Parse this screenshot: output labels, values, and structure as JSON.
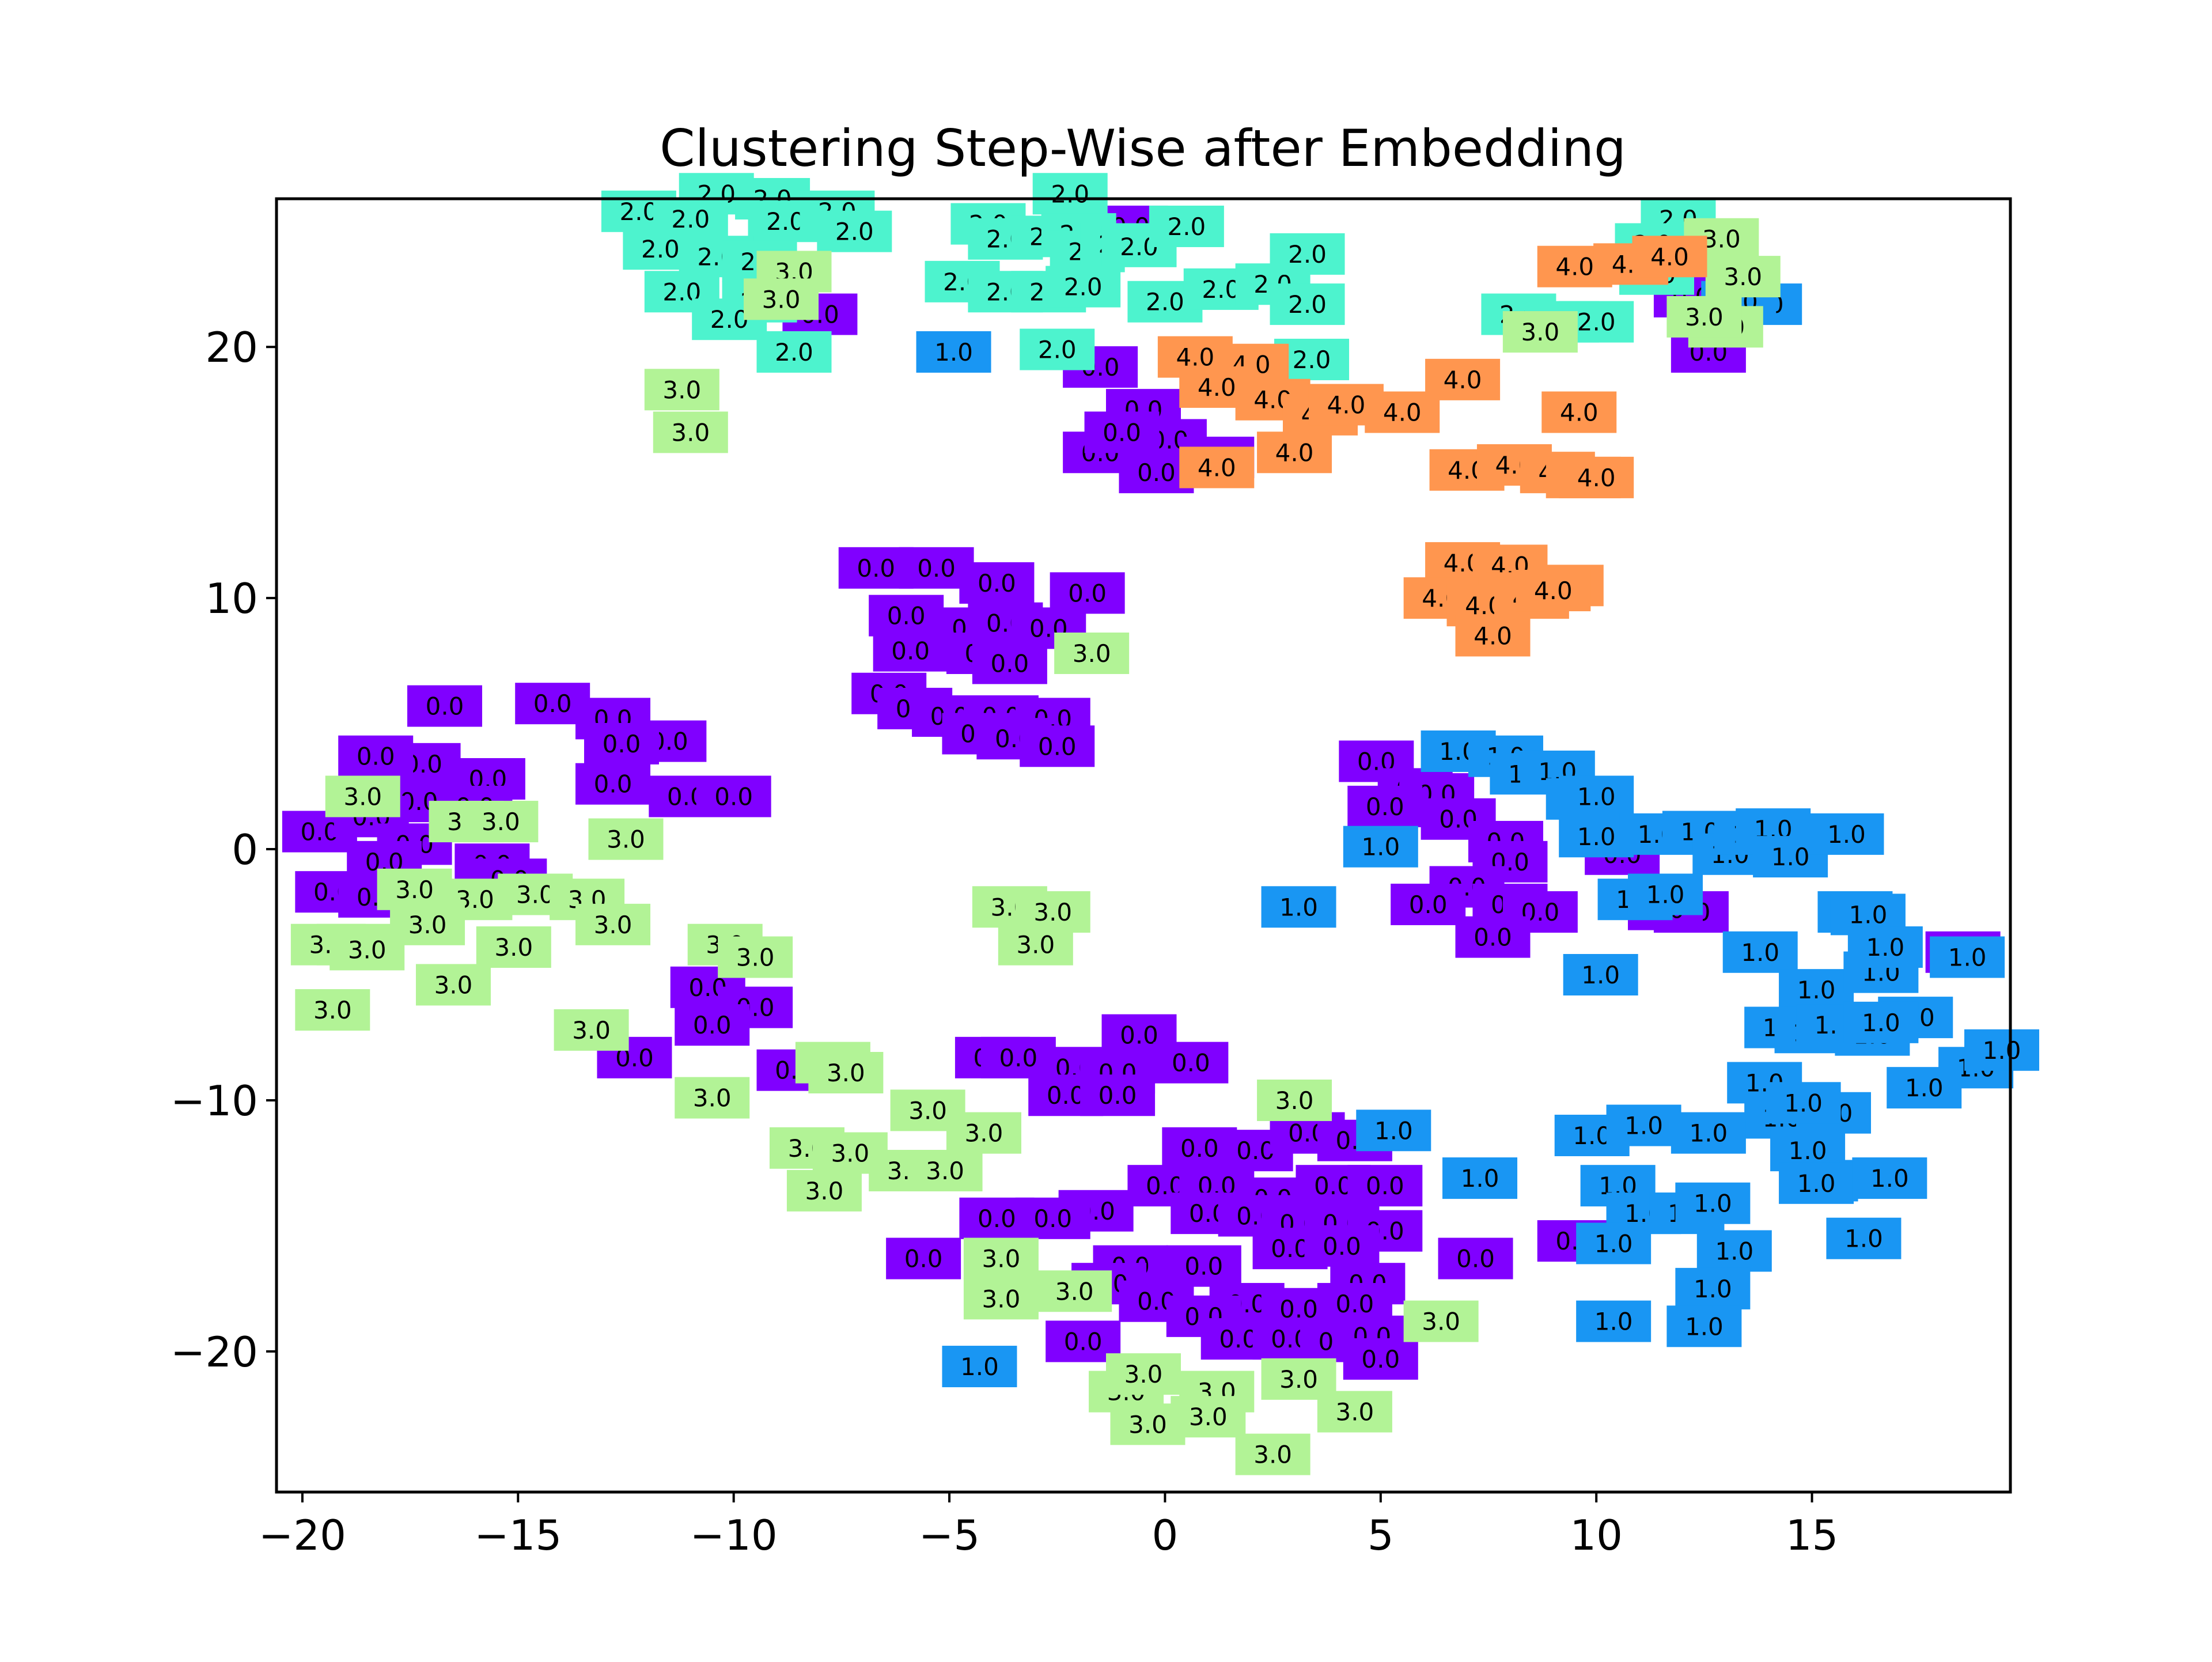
{
  "chart_data": {
    "type": "scatter",
    "title": "Clustering Step-Wise after Embedding",
    "xlabel": "",
    "ylabel": "",
    "xlim": [
      -20.6,
      19.6
    ],
    "ylim": [
      -25.6,
      25.9
    ],
    "xticks": [
      -20,
      -15,
      -10,
      -5,
      0,
      5,
      10,
      15
    ],
    "yticks": [
      -20,
      -10,
      0,
      10,
      20
    ],
    "xtick_labels": [
      "−20",
      "−15",
      "−10",
      "−5",
      "0",
      "5",
      "10",
      "15"
    ],
    "ytick_labels": [
      "−20",
      "−10",
      "0",
      "10",
      "20"
    ],
    "grid": false,
    "legend": "none",
    "marker": "labelled box",
    "colors": {
      "0.0": "#8000ff",
      "1.0": "#1996f3",
      "2.0": "#4df3ce",
      "3.0": "#b2f396",
      "4.0": "#ff964f"
    },
    "series": [
      {
        "label": "0.0",
        "points": [
          [
            -0.8,
            24.8
          ],
          [
            -8.0,
            21.3
          ],
          [
            -1.5,
            19.2
          ],
          [
            -0.5,
            17.5
          ],
          [
            0.1,
            16.3
          ],
          [
            -1.5,
            15.8
          ],
          [
            -0.2,
            15.0
          ],
          [
            1.2,
            15.6
          ],
          [
            -1.0,
            16.6
          ],
          [
            12.6,
            19.8
          ],
          [
            12.2,
            22.0
          ],
          [
            -6.7,
            11.2
          ],
          [
            -5.3,
            11.2
          ],
          [
            -3.9,
            10.6
          ],
          [
            -1.8,
            10.2
          ],
          [
            -6.0,
            9.3
          ],
          [
            -4.5,
            8.8
          ],
          [
            -3.7,
            9.0
          ],
          [
            -2.7,
            8.8
          ],
          [
            -5.9,
            7.9
          ],
          [
            -4.2,
            7.8
          ],
          [
            -3.6,
            7.4
          ],
          [
            -6.4,
            6.2
          ],
          [
            -5.8,
            5.6
          ],
          [
            -5.0,
            5.3
          ],
          [
            -3.8,
            5.3
          ],
          [
            -2.6,
            5.2
          ],
          [
            -4.3,
            4.6
          ],
          [
            -3.5,
            4.4
          ],
          [
            -2.5,
            4.1
          ],
          [
            -16.7,
            5.7
          ],
          [
            -14.2,
            5.8
          ],
          [
            -12.8,
            5.2
          ],
          [
            -11.5,
            4.3
          ],
          [
            -12.6,
            4.2
          ],
          [
            -17.2,
            3.4
          ],
          [
            -18.3,
            3.7
          ],
          [
            -15.7,
            2.8
          ],
          [
            -12.8,
            2.6
          ],
          [
            -11.1,
            2.1
          ],
          [
            -10.0,
            2.1
          ],
          [
            -17.3,
            1.9
          ],
          [
            -16.0,
            1.7
          ],
          [
            -19.6,
            0.7
          ],
          [
            -18.4,
            1.3
          ],
          [
            -17.4,
            0.2
          ],
          [
            -18.1,
            -0.5
          ],
          [
            -15.6,
            -0.6
          ],
          [
            -15.2,
            -1.2
          ],
          [
            -19.3,
            -1.7
          ],
          [
            -18.3,
            -1.9
          ],
          [
            -10.6,
            -5.5
          ],
          [
            -9.5,
            -6.3
          ],
          [
            -10.5,
            -7.0
          ],
          [
            -12.3,
            -8.3
          ],
          [
            -8.6,
            -8.8
          ],
          [
            -4.0,
            -8.3
          ],
          [
            -3.4,
            -8.3
          ],
          [
            -2.1,
            -8.7
          ],
          [
            -1.1,
            -8.9
          ],
          [
            -0.6,
            -7.4
          ],
          [
            0.6,
            -8.5
          ],
          [
            -2.3,
            -9.8
          ],
          [
            -1.1,
            -9.8
          ],
          [
            0.8,
            -11.9
          ],
          [
            2.1,
            -12.0
          ],
          [
            3.3,
            -11.3
          ],
          [
            4.4,
            -11.6
          ],
          [
            0.0,
            -13.4
          ],
          [
            1.2,
            -13.4
          ],
          [
            2.5,
            -13.9
          ],
          [
            3.9,
            -13.4
          ],
          [
            5.1,
            -13.4
          ],
          [
            -3.9,
            -14.7
          ],
          [
            -1.6,
            -14.4
          ],
          [
            -2.6,
            -14.7
          ],
          [
            1.0,
            -14.5
          ],
          [
            2.1,
            -14.6
          ],
          [
            3.1,
            -14.9
          ],
          [
            4.1,
            -14.9
          ],
          [
            5.1,
            -15.2
          ],
          [
            7.2,
            -16.3
          ],
          [
            -5.6,
            -16.3
          ],
          [
            -0.8,
            -16.6
          ],
          [
            0.9,
            -16.6
          ],
          [
            2.9,
            -15.9
          ],
          [
            4.1,
            -15.8
          ],
          [
            4.7,
            -17.3
          ],
          [
            -1.3,
            -17.3
          ],
          [
            -0.2,
            -18.0
          ],
          [
            1.9,
            -18.1
          ],
          [
            3.1,
            -18.3
          ],
          [
            4.4,
            -18.1
          ],
          [
            -1.9,
            -19.6
          ],
          [
            0.9,
            -18.6
          ],
          [
            1.7,
            -19.5
          ],
          [
            2.9,
            -19.5
          ],
          [
            4.0,
            -19.6
          ],
          [
            4.8,
            -19.4
          ],
          [
            5.0,
            -20.3
          ],
          [
            9.5,
            -15.6
          ],
          [
            4.9,
            3.5
          ],
          [
            5.8,
            2.4
          ],
          [
            6.3,
            2.2
          ],
          [
            5.1,
            1.7
          ],
          [
            6.8,
            1.2
          ],
          [
            7.9,
            0.3
          ],
          [
            8.0,
            -0.5
          ],
          [
            7.0,
            -1.5
          ],
          [
            6.1,
            -2.2
          ],
          [
            8.0,
            -2.2
          ],
          [
            8.7,
            -2.5
          ],
          [
            7.6,
            -3.5
          ],
          [
            12.2,
            -2.5
          ],
          [
            11.6,
            -2.4
          ],
          [
            18.5,
            -4.1
          ],
          [
            10.6,
            -0.2
          ]
        ]
      },
      {
        "label": "1.0",
        "points": [
          [
            -4.9,
            19.8
          ],
          [
            13.9,
            21.7
          ],
          [
            13.3,
            21.8
          ],
          [
            6.8,
            3.9
          ],
          [
            7.9,
            3.7
          ],
          [
            8.4,
            3.0
          ],
          [
            9.1,
            3.1
          ],
          [
            9.7,
            2.0
          ],
          [
            10.0,
            2.1
          ],
          [
            5.0,
            0.1
          ],
          [
            10.0,
            0.5
          ],
          [
            11.4,
            0.6
          ],
          [
            12.4,
            0.7
          ],
          [
            13.1,
            -0.2
          ],
          [
            13.6,
            0.6
          ],
          [
            14.1,
            0.8
          ],
          [
            14.5,
            -0.3
          ],
          [
            15.8,
            0.6
          ],
          [
            16.0,
            -2.5
          ],
          [
            16.3,
            -2.6
          ],
          [
            3.1,
            -2.3
          ],
          [
            10.9,
            -2.0
          ],
          [
            11.6,
            -1.8
          ],
          [
            10.1,
            -5.0
          ],
          [
            13.8,
            -4.1
          ],
          [
            15.1,
            -5.6
          ],
          [
            16.6,
            -4.9
          ],
          [
            16.7,
            -3.9
          ],
          [
            18.6,
            -4.3
          ],
          [
            14.3,
            -7.1
          ],
          [
            15.0,
            -7.3
          ],
          [
            15.5,
            -7.0
          ],
          [
            16.4,
            -7.4
          ],
          [
            17.4,
            -6.7
          ],
          [
            16.6,
            -6.9
          ],
          [
            18.8,
            -8.7
          ],
          [
            19.4,
            -8.0
          ],
          [
            13.9,
            -9.3
          ],
          [
            14.3,
            -10.7
          ],
          [
            15.5,
            -10.5
          ],
          [
            14.8,
            -10.1
          ],
          [
            17.6,
            -9.5
          ],
          [
            5.3,
            -11.2
          ],
          [
            7.3,
            -13.1
          ],
          [
            9.9,
            -11.4
          ],
          [
            11.1,
            -11.0
          ],
          [
            12.6,
            -11.3
          ],
          [
            10.5,
            -13.4
          ],
          [
            11.1,
            -14.5
          ],
          [
            12.1,
            -14.5
          ],
          [
            12.7,
            -14.1
          ],
          [
            14.9,
            -12.0
          ],
          [
            15.2,
            -13.2
          ],
          [
            15.1,
            -13.3
          ],
          [
            16.8,
            -13.1
          ],
          [
            10.4,
            -15.7
          ],
          [
            13.2,
            -16.0
          ],
          [
            16.2,
            -15.5
          ],
          [
            12.7,
            -17.5
          ],
          [
            10.4,
            -18.8
          ],
          [
            12.5,
            -19.0
          ],
          [
            -4.3,
            -20.6
          ]
        ]
      },
      {
        "label": "2.0",
        "points": [
          [
            -12.2,
            25.4
          ],
          [
            -10.4,
            26.1
          ],
          [
            -9.1,
            25.9
          ],
          [
            -11.0,
            25.1
          ],
          [
            -8.8,
            25.0
          ],
          [
            -7.6,
            25.4
          ],
          [
            -7.2,
            24.6
          ],
          [
            -11.7,
            23.9
          ],
          [
            -10.4,
            23.6
          ],
          [
            -9.4,
            23.4
          ],
          [
            -11.2,
            22.2
          ],
          [
            -9.4,
            21.8
          ],
          [
            -10.1,
            21.1
          ],
          [
            -8.6,
            19.8
          ],
          [
            -4.1,
            24.9
          ],
          [
            -3.7,
            24.3
          ],
          [
            -2.7,
            24.4
          ],
          [
            -2.2,
            26.1
          ],
          [
            -2.0,
            24.5
          ],
          [
            -1.8,
            23.8
          ],
          [
            -1.1,
            24.1
          ],
          [
            -0.6,
            24.0
          ],
          [
            0.5,
            24.8
          ],
          [
            -4.7,
            22.6
          ],
          [
            -3.7,
            22.2
          ],
          [
            -2.7,
            22.2
          ],
          [
            -1.9,
            22.4
          ],
          [
            0.0,
            21.8
          ],
          [
            1.3,
            22.3
          ],
          [
            2.5,
            22.5
          ],
          [
            3.3,
            23.7
          ],
          [
            3.3,
            21.7
          ],
          [
            -2.5,
            19.9
          ],
          [
            3.4,
            19.5
          ],
          [
            8.2,
            21.3
          ],
          [
            9.2,
            21.0
          ],
          [
            10.0,
            21.0
          ],
          [
            11.9,
            25.1
          ],
          [
            11.3,
            24.1
          ],
          [
            11.4,
            22.9
          ]
        ]
      },
      {
        "label": "3.0",
        "points": [
          [
            -11.2,
            18.3
          ],
          [
            -11.0,
            16.6
          ],
          [
            -8.6,
            23.0
          ],
          [
            -8.9,
            21.9
          ],
          [
            12.9,
            24.3
          ],
          [
            13.4,
            22.8
          ],
          [
            13.0,
            20.8
          ],
          [
            12.5,
            21.2
          ],
          [
            8.7,
            20.6
          ],
          [
            -1.7,
            7.8
          ],
          [
            -18.6,
            2.1
          ],
          [
            -16.2,
            1.1
          ],
          [
            -15.4,
            1.1
          ],
          [
            -12.5,
            0.4
          ],
          [
            -17.4,
            -1.6
          ],
          [
            -16.0,
            -2.0
          ],
          [
            -14.6,
            -1.8
          ],
          [
            -13.4,
            -2.0
          ],
          [
            -12.8,
            -3.0
          ],
          [
            -17.1,
            -3.0
          ],
          [
            -18.8,
            -3.8
          ],
          [
            -19.4,
            -3.8
          ],
          [
            -18.5,
            -4.0
          ],
          [
            -15.1,
            -3.9
          ],
          [
            -16.5,
            -5.4
          ],
          [
            -19.3,
            -6.4
          ],
          [
            -10.2,
            -3.8
          ],
          [
            -9.5,
            -4.3
          ],
          [
            -13.3,
            -7.2
          ],
          [
            -10.5,
            -9.9
          ],
          [
            -7.7,
            -8.5
          ],
          [
            -7.4,
            -8.9
          ],
          [
            -3.6,
            -2.3
          ],
          [
            -2.6,
            -2.5
          ],
          [
            -3.0,
            -3.8
          ],
          [
            -5.5,
            -10.4
          ],
          [
            -4.2,
            -11.3
          ],
          [
            -8.3,
            -11.9
          ],
          [
            -7.3,
            -12.1
          ],
          [
            -6.0,
            -12.8
          ],
          [
            -5.1,
            -12.8
          ],
          [
            -7.9,
            -13.6
          ],
          [
            -3.8,
            -16.3
          ],
          [
            -3.8,
            -17.9
          ],
          [
            -2.1,
            -17.6
          ],
          [
            3.0,
            -10.0
          ],
          [
            6.4,
            -18.8
          ],
          [
            -0.9,
            -21.6
          ],
          [
            -0.5,
            -20.9
          ],
          [
            1.2,
            -21.6
          ],
          [
            3.1,
            -21.1
          ],
          [
            -0.4,
            -22.9
          ],
          [
            1.0,
            -22.6
          ],
          [
            4.4,
            -22.4
          ],
          [
            2.5,
            -24.1
          ]
        ]
      },
      {
        "label": "4.0",
        "points": [
          [
            9.5,
            23.2
          ],
          [
            10.8,
            23.3
          ],
          [
            11.7,
            23.6
          ],
          [
            0.7,
            19.6
          ],
          [
            2.0,
            19.3
          ],
          [
            1.2,
            18.4
          ],
          [
            2.5,
            17.9
          ],
          [
            3.6,
            17.3
          ],
          [
            4.2,
            17.7
          ],
          [
            5.5,
            17.4
          ],
          [
            3.0,
            15.8
          ],
          [
            1.2,
            15.2
          ],
          [
            6.9,
            18.7
          ],
          [
            9.6,
            17.4
          ],
          [
            7.0,
            15.1
          ],
          [
            8.1,
            15.3
          ],
          [
            9.1,
            15.0
          ],
          [
            9.7,
            14.8
          ],
          [
            10.0,
            14.8
          ],
          [
            6.9,
            11.4
          ],
          [
            8.0,
            11.3
          ],
          [
            8.3,
            10.2
          ],
          [
            9.3,
            10.5
          ],
          [
            6.4,
            10.0
          ],
          [
            7.4,
            9.7
          ],
          [
            7.6,
            8.5
          ],
          [
            8.5,
            10.0
          ],
          [
            9.0,
            10.3
          ]
        ]
      }
    ]
  }
}
